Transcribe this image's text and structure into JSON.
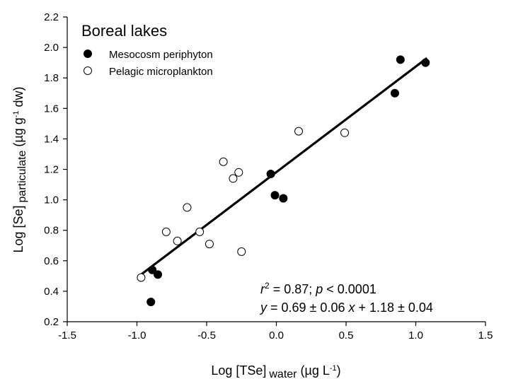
{
  "chart_data": {
    "type": "scatter",
    "title": "Boreal lakes",
    "xlabel": {
      "main": "Log [TSe]",
      "sub": "water",
      "unit_open": " (µg L",
      "unit_sup": "-1",
      "unit_close": ")"
    },
    "ylabel": {
      "main": "Log [Se]",
      "sub": "particulate",
      "unit_open": " (µg g",
      "unit_sup": "-1",
      "unit_close": " dw)"
    },
    "xlim": [
      -1.5,
      1.5
    ],
    "ylim": [
      0.2,
      2.2
    ],
    "xticks": [
      -1.5,
      -1.0,
      -0.5,
      0.0,
      0.5,
      1.0,
      1.5
    ],
    "xtick_labels": [
      "-1.5",
      "-1.0",
      "-0.5",
      "0.0",
      "0.5",
      "1.0",
      "1.5"
    ],
    "yticks": [
      0.2,
      0.4,
      0.6,
      0.8,
      1.0,
      1.2,
      1.4,
      1.6,
      1.8,
      2.0,
      2.2
    ],
    "ytick_labels": [
      "0.2",
      "0.4",
      "0.6",
      "0.8",
      "1.0",
      "1.2",
      "1.4",
      "1.6",
      "1.8",
      "2.0",
      "2.2"
    ],
    "grid": false,
    "legend_position": "top-left",
    "series": [
      {
        "name": "Mesocosm periphyton",
        "marker": "filled-circle",
        "color": "#000000",
        "points": [
          {
            "x": -0.9,
            "y": 0.33
          },
          {
            "x": -0.89,
            "y": 0.54
          },
          {
            "x": -0.85,
            "y": 0.51
          },
          {
            "x": -0.04,
            "y": 1.17
          },
          {
            "x": -0.01,
            "y": 1.03
          },
          {
            "x": 0.05,
            "y": 1.01
          },
          {
            "x": 0.85,
            "y": 1.7
          },
          {
            "x": 0.89,
            "y": 1.92
          },
          {
            "x": 1.07,
            "y": 1.9
          }
        ]
      },
      {
        "name": "Pelagic microplankton",
        "marker": "open-circle",
        "color": "#000000",
        "points": [
          {
            "x": -0.97,
            "y": 0.49
          },
          {
            "x": -0.79,
            "y": 0.79
          },
          {
            "x": -0.71,
            "y": 0.73
          },
          {
            "x": -0.64,
            "y": 0.95
          },
          {
            "x": -0.55,
            "y": 0.79
          },
          {
            "x": -0.48,
            "y": 0.71
          },
          {
            "x": -0.38,
            "y": 1.25
          },
          {
            "x": -0.31,
            "y": 1.14
          },
          {
            "x": -0.27,
            "y": 1.18
          },
          {
            "x": -0.25,
            "y": 0.66
          },
          {
            "x": 0.16,
            "y": 1.45
          },
          {
            "x": 0.49,
            "y": 1.44
          }
        ]
      }
    ],
    "regression": {
      "x_start": -0.97,
      "y_start": 0.51,
      "x_end": 1.08,
      "y_end": 1.93,
      "color": "#000000"
    },
    "annotation": {
      "r_label": "r",
      "r_sup": "2",
      "r_rest": " = 0.87; ",
      "p_label": "p",
      "p_rest": " < 0.0001",
      "y_var": "y",
      "eq_mid": " = 0.69 ± 0.06 ",
      "x_var": "x",
      "eq_end": " + 1.18 ± 0.04"
    }
  }
}
